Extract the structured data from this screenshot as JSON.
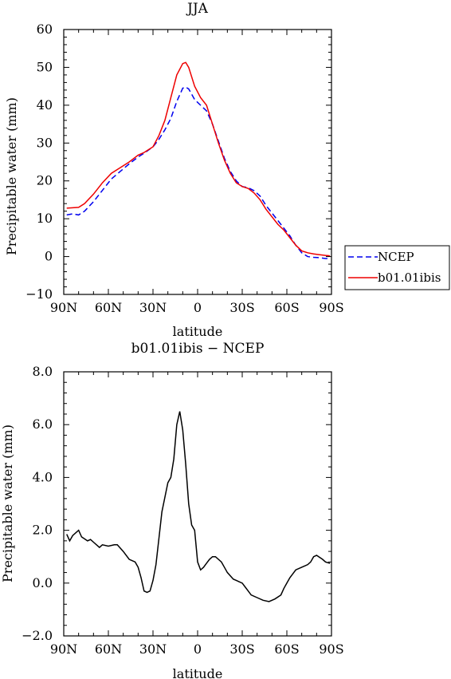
{
  "chart_data": [
    {
      "type": "line",
      "title": "JJA",
      "xlabel": "latitude",
      "ylabel": "Precipitable water (mm)",
      "xlim": [
        90,
        -90
      ],
      "ylim": [
        -10,
        60
      ],
      "x_ticks": [
        90,
        60,
        30,
        0,
        -30,
        -60,
        -90
      ],
      "x_tick_labels": [
        "90N",
        "60N",
        "30N",
        "0",
        "30S",
        "60S",
        "90S"
      ],
      "y_ticks": [
        -10,
        0,
        10,
        20,
        30,
        40,
        50,
        60
      ],
      "y_tick_labels": [
        "−10",
        "0",
        "10",
        "20",
        "30",
        "40",
        "50",
        "60"
      ],
      "legend_position": "right-outside",
      "series": [
        {
          "name": "NCEP",
          "color": "#0000ee",
          "dash": "dashed",
          "x": [
            88,
            84,
            80,
            76,
            70,
            64,
            58,
            52,
            46,
            40,
            36,
            30,
            26,
            22,
            18,
            14,
            10,
            8,
            6,
            2,
            -2,
            -6,
            -10,
            -14,
            -18,
            -22,
            -26,
            -30,
            -34,
            -38,
            -42,
            -46,
            -50,
            -54,
            -58,
            -62,
            -66,
            -70,
            -74,
            -78,
            -82,
            -86,
            -89
          ],
          "values": [
            11.0,
            11.3,
            11.0,
            12.0,
            14.5,
            17.5,
            20.5,
            22.5,
            24.5,
            26.3,
            27.3,
            29.0,
            31.0,
            33.5,
            36.5,
            41.0,
            44.5,
            44.8,
            44.3,
            41.5,
            40.0,
            38.5,
            35.0,
            30.5,
            26.0,
            22.5,
            20.0,
            18.5,
            18.2,
            17.4,
            16.0,
            13.5,
            11.5,
            9.5,
            7.5,
            5.5,
            3.0,
            1.0,
            0.0,
            -0.2,
            -0.3,
            -0.5,
            -0.5
          ]
        },
        {
          "name": "b01.01ibis",
          "color": "#ee0000",
          "dash": "solid",
          "x": [
            88,
            84,
            80,
            76,
            70,
            64,
            58,
            52,
            46,
            40,
            36,
            30,
            26,
            22,
            18,
            14,
            10,
            8,
            6,
            2,
            -2,
            -6,
            -10,
            -14,
            -18,
            -22,
            -26,
            -30,
            -34,
            -38,
            -42,
            -46,
            -50,
            -54,
            -58,
            -62,
            -66,
            -70,
            -74,
            -78,
            -82,
            -86,
            -89
          ],
          "values": [
            12.8,
            12.9,
            13.0,
            14.0,
            16.5,
            19.5,
            22.0,
            23.5,
            25.0,
            26.8,
            27.5,
            29.0,
            32.0,
            36.0,
            42.0,
            48.0,
            51.0,
            51.3,
            50.0,
            45.0,
            42.0,
            40.0,
            35.0,
            30.0,
            25.5,
            22.0,
            19.5,
            18.5,
            18.0,
            16.8,
            15.0,
            12.5,
            10.5,
            8.5,
            7.0,
            5.0,
            3.0,
            1.5,
            1.0,
            0.7,
            0.5,
            0.3,
            0.2
          ]
        }
      ]
    },
    {
      "type": "line",
      "title": "b01.01ibis − NCEP",
      "xlabel": "latitude",
      "ylabel": "Precipitable water (mm)",
      "xlim": [
        90,
        -90
      ],
      "ylim": [
        -2.0,
        8.0
      ],
      "x_ticks": [
        90,
        60,
        30,
        0,
        -30,
        -60,
        -90
      ],
      "x_tick_labels": [
        "90N",
        "60N",
        "30N",
        "0",
        "30S",
        "60S",
        "90S"
      ],
      "y_ticks": [
        -2.0,
        0.0,
        2.0,
        4.0,
        6.0,
        8.0
      ],
      "y_tick_labels": [
        "−2.0",
        "0.0",
        "2.0",
        "4.0",
        "6.0",
        "8.0"
      ],
      "series": [
        {
          "color": "#000000",
          "dash": "solid",
          "x": [
            88,
            86,
            84,
            80,
            78,
            74,
            72,
            70,
            66,
            64,
            60,
            56,
            54,
            50,
            46,
            42,
            40,
            38,
            36,
            34,
            32,
            30,
            28,
            26,
            24,
            20,
            18,
            16,
            14,
            12,
            10,
            8,
            6,
            4,
            2,
            0,
            -2,
            -4,
            -6,
            -8,
            -10,
            -12,
            -16,
            -18,
            -20,
            -24,
            -26,
            -28,
            -30,
            -32,
            -34,
            -36,
            -40,
            -44,
            -48,
            -52,
            -56,
            -58,
            -60,
            -62,
            -64,
            -66,
            -70,
            -74,
            -76,
            -78,
            -80,
            -84,
            -86,
            -89
          ],
          "values": [
            1.85,
            1.6,
            1.8,
            2.0,
            1.75,
            1.6,
            1.65,
            1.55,
            1.35,
            1.45,
            1.4,
            1.45,
            1.45,
            1.2,
            0.9,
            0.8,
            0.6,
            0.2,
            -0.3,
            -0.35,
            -0.3,
            0.1,
            0.7,
            1.7,
            2.7,
            3.8,
            4.0,
            4.7,
            6.0,
            6.5,
            5.8,
            4.5,
            3.0,
            2.2,
            2.0,
            0.8,
            0.5,
            0.6,
            0.75,
            0.9,
            1.0,
            1.0,
            0.8,
            0.6,
            0.4,
            0.15,
            0.1,
            0.05,
            0.0,
            -0.15,
            -0.3,
            -0.45,
            -0.55,
            -0.65,
            -0.7,
            -0.6,
            -0.45,
            -0.2,
            0.0,
            0.2,
            0.35,
            0.5,
            0.6,
            0.7,
            0.8,
            1.0,
            1.05,
            0.9,
            0.8,
            0.75
          ]
        }
      ]
    }
  ]
}
